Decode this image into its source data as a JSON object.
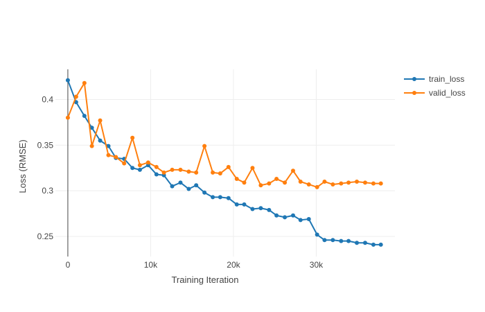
{
  "chart_data": {
    "type": "line",
    "title": "",
    "xlabel": "Training Iteration",
    "ylabel": "Loss (RMSE)",
    "xlim": [
      -1500,
      39500
    ],
    "ylim": [
      0.228,
      0.433
    ],
    "xticks": [
      0,
      10000,
      20000,
      30000
    ],
    "xtick_labels": [
      "0",
      "10k",
      "20k",
      "30k"
    ],
    "yticks": [
      0.25,
      0.3,
      0.35,
      0.4
    ],
    "ytick_labels": [
      "0.25",
      "0.3",
      "0.35",
      "0.4"
    ],
    "grid": true,
    "legend_position": "top-right",
    "x": [
      0,
      1000,
      2000,
      2900,
      3900,
      4900,
      5800,
      6800,
      7800,
      8700,
      9700,
      10700,
      11600,
      12600,
      13600,
      14600,
      15500,
      16500,
      17500,
      18400,
      19400,
      20400,
      21300,
      22300,
      23300,
      24300,
      25200,
      26200,
      27200,
      28100,
      29100,
      30100,
      31000,
      32000,
      33000,
      33900,
      34900,
      35900,
      36900,
      37800
    ],
    "series": [
      {
        "name": "train_loss",
        "color": "#1f77b4",
        "values": [
          0.421,
          0.397,
          0.382,
          0.369,
          0.355,
          0.349,
          0.336,
          0.335,
          0.325,
          0.323,
          0.328,
          0.318,
          0.317,
          0.305,
          0.309,
          0.302,
          0.306,
          0.298,
          0.293,
          0.293,
          0.292,
          0.285,
          0.285,
          0.28,
          0.281,
          0.279,
          0.273,
          0.271,
          0.273,
          0.268,
          0.269,
          0.252,
          0.246,
          0.246,
          0.245,
          0.245,
          0.243,
          0.243,
          0.241,
          0.241
        ]
      },
      {
        "name": "valid_loss",
        "color": "#ff7f0e",
        "values": [
          0.38,
          0.403,
          0.418,
          0.349,
          0.377,
          0.339,
          0.337,
          0.33,
          0.358,
          0.328,
          0.331,
          0.326,
          0.32,
          0.323,
          0.323,
          0.321,
          0.32,
          0.349,
          0.32,
          0.319,
          0.326,
          0.313,
          0.309,
          0.325,
          0.306,
          0.308,
          0.313,
          0.309,
          0.322,
          0.31,
          0.307,
          0.304,
          0.31,
          0.307,
          0.308,
          0.309,
          0.31,
          0.309,
          0.308,
          0.308
        ]
      }
    ]
  }
}
